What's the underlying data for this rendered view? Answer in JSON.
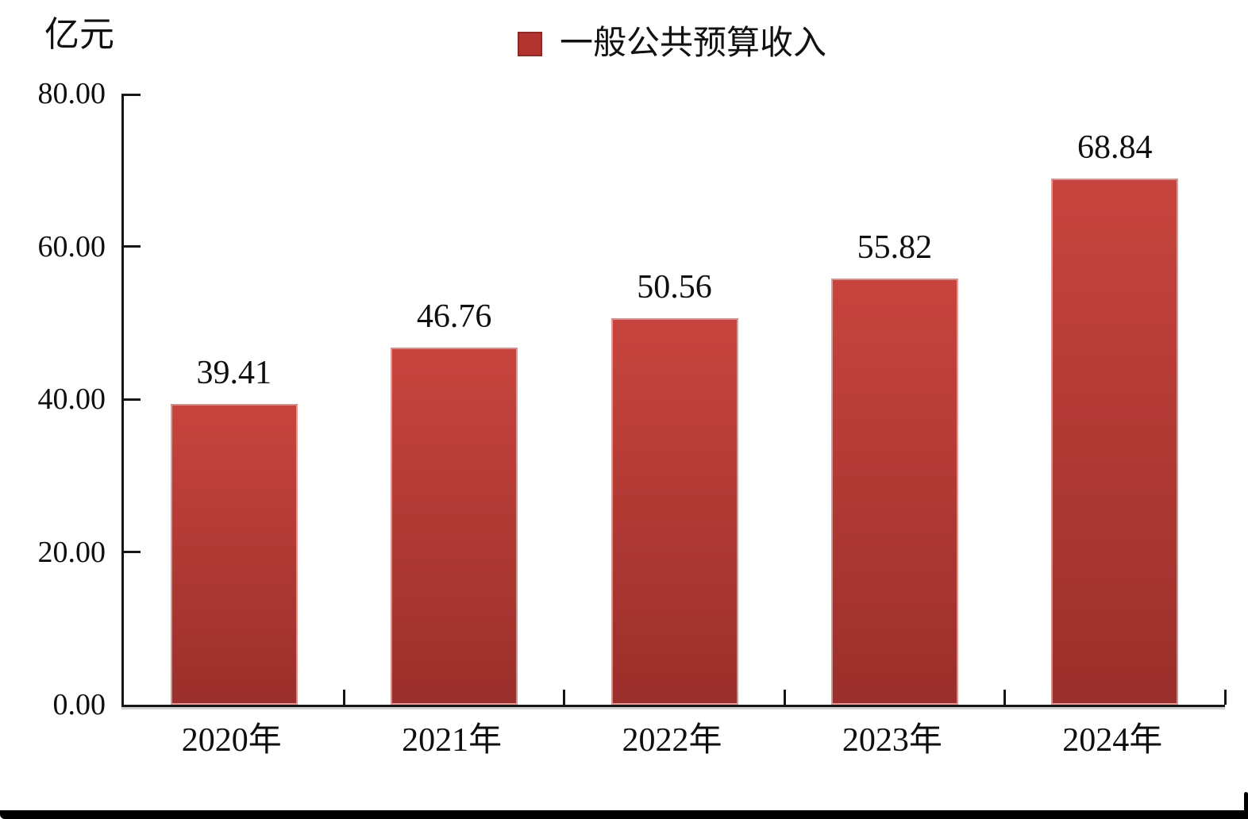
{
  "page": {
    "background_color": "#ffffff",
    "frame_color": "#000000"
  },
  "chart_data": {
    "type": "bar",
    "title": "",
    "unit_label": "亿元",
    "legend": {
      "label": "一般公共预算收入",
      "marker_color": "#b23330",
      "position": "top-center"
    },
    "categories": [
      "2020年",
      "2021年",
      "2022年",
      "2023年",
      "2024年"
    ],
    "series": [
      {
        "name": "一般公共预算收入",
        "values": [
          39.41,
          46.76,
          50.56,
          55.82,
          68.84
        ]
      }
    ],
    "value_labels": [
      "39.41",
      "46.76",
      "50.56",
      "55.82",
      "68.84"
    ],
    "xlabel": "",
    "ylabel": "亿元",
    "ylim": [
      0,
      80
    ],
    "ytick_labels": [
      "0.00",
      "20.00",
      "40.00",
      "60.00",
      "80.00"
    ],
    "grid": false,
    "bar_color_top": "#c7443e",
    "bar_color_bottom": "#9b2f2b",
    "axis_color": "#161616",
    "text_color": "#0f0f0f"
  }
}
